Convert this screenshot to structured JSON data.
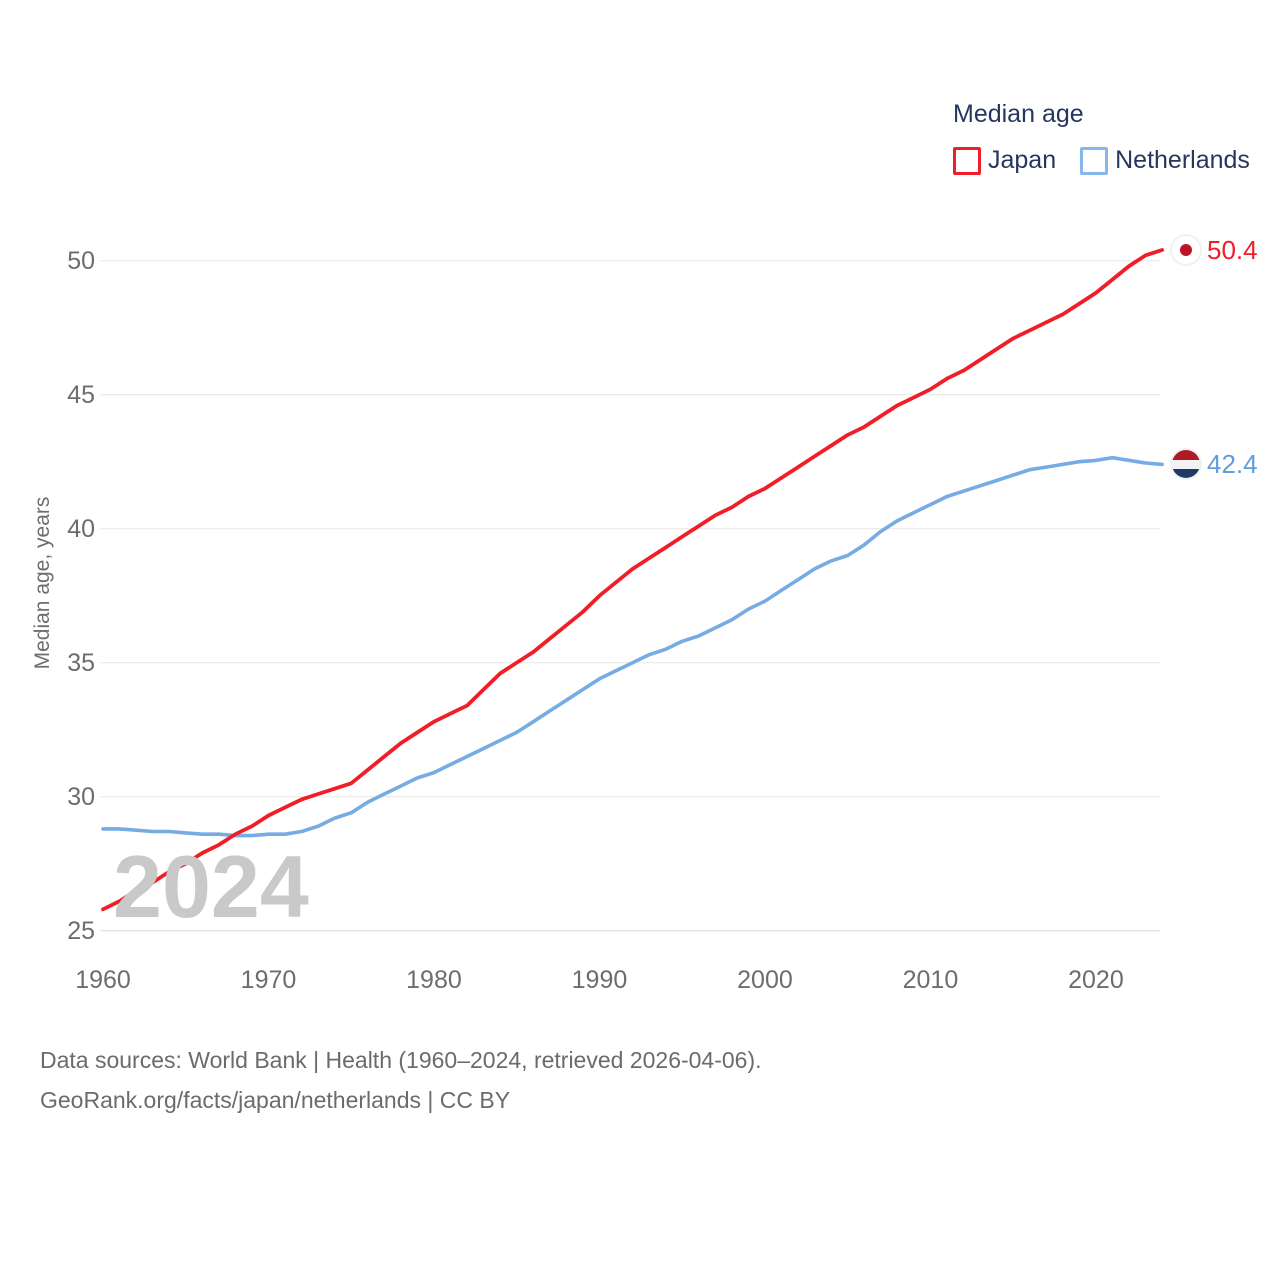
{
  "legend": {
    "title": "Median age",
    "items": [
      {
        "label": "Japan",
        "color": "#f01e28"
      },
      {
        "label": "Netherlands",
        "color": "#76abe4"
      }
    ]
  },
  "watermark": "2024",
  "end_labels": [
    {
      "series": "Japan",
      "value": "50.4",
      "color": "#f01e28",
      "flag": "japan-flag-icon"
    },
    {
      "series": "Netherlands",
      "value": "42.4",
      "color": "#5f9ddf",
      "flag": "netherlands-flag-icon"
    }
  ],
  "footer": {
    "line1": "Data sources: World Bank | Health (1960–2024, retrieved 2026-04-06).",
    "line2": "GeoRank.org/facts/japan/netherlands | CC BY"
  },
  "chart_data": {
    "type": "line",
    "title": "Median age",
    "xlabel": "",
    "ylabel": "Median age, years",
    "xlim": [
      1960,
      2024
    ],
    "ylim": [
      25,
      51
    ],
    "xticks": [
      1960,
      1970,
      1980,
      1990,
      2000,
      2010,
      2020
    ],
    "yticks": [
      25,
      30,
      35,
      40,
      45,
      50
    ],
    "grid": true,
    "legend_position": "top-right",
    "x": [
      1960,
      1961,
      1962,
      1963,
      1964,
      1965,
      1966,
      1967,
      1968,
      1969,
      1970,
      1971,
      1972,
      1973,
      1974,
      1975,
      1976,
      1977,
      1978,
      1979,
      1980,
      1981,
      1982,
      1983,
      1984,
      1985,
      1986,
      1987,
      1988,
      1989,
      1990,
      1991,
      1992,
      1993,
      1994,
      1995,
      1996,
      1997,
      1998,
      1999,
      2000,
      2001,
      2002,
      2003,
      2004,
      2005,
      2006,
      2007,
      2008,
      2009,
      2010,
      2011,
      2012,
      2013,
      2014,
      2015,
      2016,
      2017,
      2018,
      2019,
      2020,
      2021,
      2022,
      2023,
      2024
    ],
    "series": [
      {
        "name": "Japan",
        "color": "#f01e28",
        "values": [
          25.8,
          26.1,
          26.5,
          26.8,
          27.2,
          27.5,
          27.9,
          28.2,
          28.6,
          28.9,
          29.3,
          29.6,
          29.9,
          30.1,
          30.3,
          30.5,
          31.0,
          31.5,
          32.0,
          32.4,
          32.8,
          33.1,
          33.4,
          34.0,
          34.6,
          35.0,
          35.4,
          35.9,
          36.4,
          36.9,
          37.5,
          38.0,
          38.5,
          38.9,
          39.3,
          39.7,
          40.1,
          40.5,
          40.8,
          41.2,
          41.5,
          41.9,
          42.3,
          42.7,
          43.1,
          43.5,
          43.8,
          44.2,
          44.6,
          44.9,
          45.2,
          45.6,
          45.9,
          46.3,
          46.7,
          47.1,
          47.4,
          47.7,
          48.0,
          48.4,
          48.8,
          49.3,
          49.8,
          50.2,
          50.4
        ]
      },
      {
        "name": "Netherlands",
        "color": "#76abe4",
        "values": [
          28.8,
          28.8,
          28.75,
          28.7,
          28.7,
          28.65,
          28.6,
          28.6,
          28.55,
          28.55,
          28.6,
          28.6,
          28.7,
          28.9,
          29.2,
          29.4,
          29.8,
          30.1,
          30.4,
          30.7,
          30.9,
          31.2,
          31.5,
          31.8,
          32.1,
          32.4,
          32.8,
          33.2,
          33.6,
          34.0,
          34.4,
          34.7,
          35.0,
          35.3,
          35.5,
          35.8,
          36.0,
          36.3,
          36.6,
          37.0,
          37.3,
          37.7,
          38.1,
          38.5,
          38.8,
          39.0,
          39.4,
          39.9,
          40.3,
          40.6,
          40.9,
          41.2,
          41.4,
          41.6,
          41.8,
          42.0,
          42.2,
          42.3,
          42.4,
          42.5,
          42.55,
          42.65,
          42.55,
          42.45,
          42.4
        ]
      }
    ]
  }
}
